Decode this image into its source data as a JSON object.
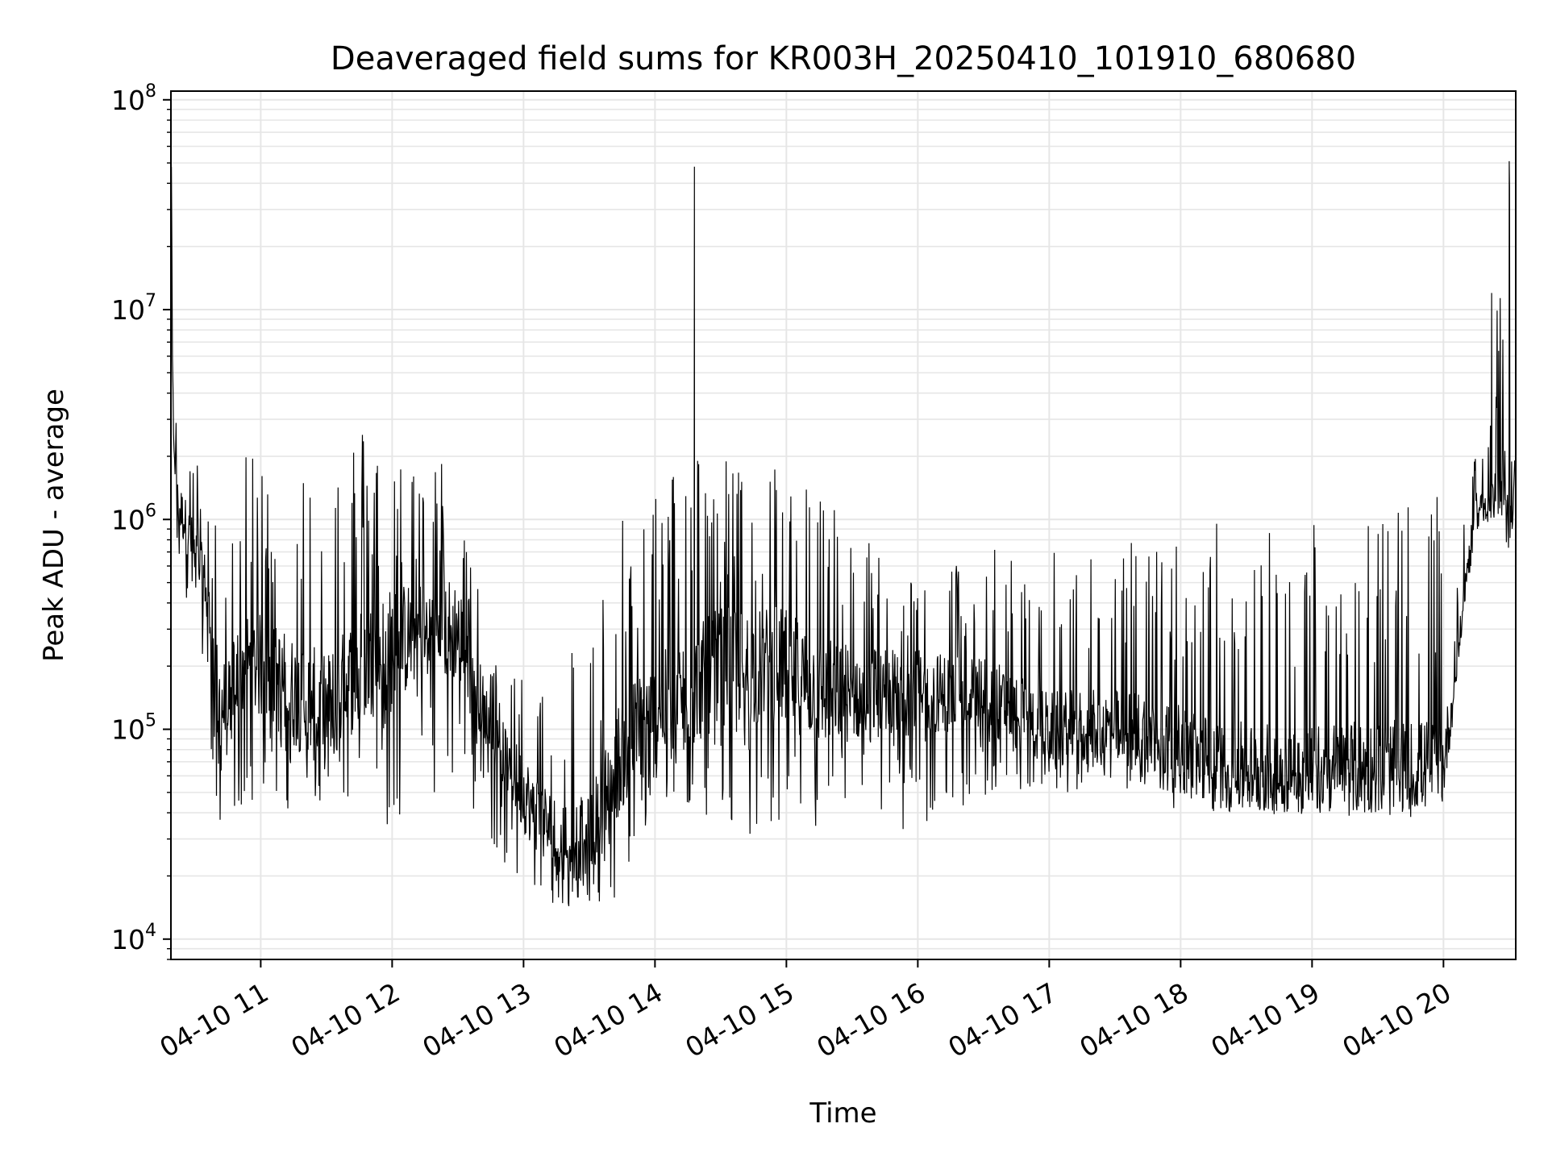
{
  "chart_data": {
    "type": "line",
    "title": "Deaveraged field sums for KR003H_20250410_101910_680680",
    "xlabel": "Time",
    "ylabel": "Peak ADU - average",
    "yscale": "log",
    "ylim": [
      8000,
      110000000
    ],
    "xlim": [
      "2025-04-10 10:19",
      "2025-04-10 20:33"
    ],
    "grid": true,
    "line_color": "#000000",
    "grid_color": "#e6e6e6",
    "x_ticks": [
      {
        "label": "04-10 11",
        "value": "2025-04-10 11:00"
      },
      {
        "label": "04-10 12",
        "value": "2025-04-10 12:00"
      },
      {
        "label": "04-10 13",
        "value": "2025-04-10 13:00"
      },
      {
        "label": "04-10 14",
        "value": "2025-04-10 14:00"
      },
      {
        "label": "04-10 15",
        "value": "2025-04-10 15:00"
      },
      {
        "label": "04-10 16",
        "value": "2025-04-10 16:00"
      },
      {
        "label": "04-10 17",
        "value": "2025-04-10 17:00"
      },
      {
        "label": "04-10 18",
        "value": "2025-04-10 18:00"
      },
      {
        "label": "04-10 19",
        "value": "2025-04-10 19:00"
      },
      {
        "label": "04-10 20",
        "value": "2025-04-10 20:00"
      }
    ],
    "y_ticks": [
      {
        "base": "10",
        "exp": "4",
        "value": 10000
      },
      {
        "base": "10",
        "exp": "5",
        "value": 100000
      },
      {
        "base": "10",
        "exp": "6",
        "value": 1000000
      },
      {
        "base": "10",
        "exp": "7",
        "value": 10000000
      },
      {
        "base": "10",
        "exp": "8",
        "value": 100000000
      }
    ],
    "series": [
      {
        "x": [
          "2025-04-10 10:19",
          "2025-04-10 10:20",
          "2025-04-10 10:22",
          "2025-04-10 10:25",
          "2025-04-10 10:30",
          "2025-04-10 10:35",
          "2025-04-10 10:40",
          "2025-04-10 10:45",
          "2025-04-10 10:50",
          "2025-04-10 11:00",
          "2025-04-10 11:15",
          "2025-04-10 11:30",
          "2025-04-10 11:45",
          "2025-04-10 12:00",
          "2025-04-10 12:15",
          "2025-04-10 12:30",
          "2025-04-10 12:45",
          "2025-04-10 13:00",
          "2025-04-10 13:15",
          "2025-04-10 13:30",
          "2025-04-10 13:45",
          "2025-04-10 14:00",
          "2025-04-10 14:15",
          "2025-04-10 14:30",
          "2025-04-10 14:45",
          "2025-04-10 15:00",
          "2025-04-10 15:15",
          "2025-04-10 15:30",
          "2025-04-10 15:45",
          "2025-04-10 16:00",
          "2025-04-10 16:15",
          "2025-04-10 16:30",
          "2025-04-10 16:45",
          "2025-04-10 17:00",
          "2025-04-10 17:15",
          "2025-04-10 17:30",
          "2025-04-10 17:45",
          "2025-04-10 18:00",
          "2025-04-10 18:15",
          "2025-04-10 18:30",
          "2025-04-10 18:45",
          "2025-04-10 19:00",
          "2025-04-10 19:15",
          "2025-04-10 19:30",
          "2025-04-10 19:45",
          "2025-04-10 20:00",
          "2025-04-10 20:05",
          "2025-04-10 20:10",
          "2025-04-10 20:15",
          "2025-04-10 20:20",
          "2025-04-10 20:25",
          "2025-04-10 20:30",
          "2025-04-10 20:33"
        ],
        "median": [
          60000000,
          3000000,
          1200000,
          1000000,
          700000,
          500000,
          150000,
          120000,
          200000,
          200000,
          150000,
          120000,
          200000,
          250000,
          300000,
          300000,
          100000,
          50000,
          30000,
          30000,
          80000,
          120000,
          150000,
          200000,
          200000,
          200000,
          150000,
          150000,
          150000,
          150000,
          150000,
          150000,
          120000,
          100000,
          100000,
          100000,
          100000,
          80000,
          70000,
          65000,
          65000,
          65000,
          65000,
          65000,
          65000,
          70000,
          150000,
          500000,
          1200000,
          1200000,
          1300000,
          1300000,
          1500000
        ],
        "low": [
          2000000,
          1000000,
          600000,
          400000,
          300000,
          200000,
          30000,
          30000,
          40000,
          50000,
          40000,
          40000,
          50000,
          30000,
          50000,
          50000,
          30000,
          15000,
          13000,
          15000,
          15000,
          30000,
          40000,
          30000,
          30000,
          30000,
          30000,
          30000,
          30000,
          30000,
          40000,
          40000,
          50000,
          50000,
          50000,
          50000,
          50000,
          40000,
          40000,
          40000,
          40000,
          40000,
          40000,
          40000,
          40000,
          60000,
          150000,
          400000,
          900000,
          900000,
          1000000,
          1000000,
          600000
        ],
        "high": [
          70000000,
          4500000,
          3500000,
          2500000,
          2000000,
          1500000,
          1000000,
          800000,
          2000000,
          2000000,
          2000000,
          2500000,
          3000000,
          2000000,
          2000000,
          2000000,
          200000,
          250000,
          250000,
          300000,
          1000000,
          1500000,
          2500000,
          2000000,
          2000000,
          2000000,
          1500000,
          1000000,
          700000,
          600000,
          600000,
          800000,
          700000,
          700000,
          800000,
          800000,
          800000,
          900000,
          1000000,
          1000000,
          1000000,
          1100000,
          1100000,
          1200000,
          1200000,
          1300000,
          400000,
          1500000,
          2000000,
          2500000,
          12000000,
          50000000,
          3000000
        ]
      }
    ],
    "spikes": [
      {
        "x": "2025-04-10 14:18",
        "y": 48000000
      },
      {
        "x": "2025-04-10 20:22",
        "y": 12000000
      },
      {
        "x": "2025-04-10 20:30",
        "y": 51000000
      }
    ]
  }
}
